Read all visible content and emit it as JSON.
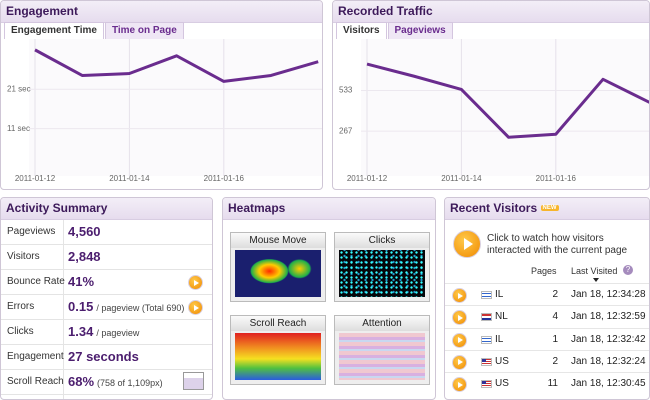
{
  "chart_data": [
    {
      "type": "line",
      "title": "Engagement",
      "tabs": [
        "Engagement Time",
        "Time on Page"
      ],
      "categories": [
        "2011-01-12",
        null,
        "2011-01-14",
        null,
        "2011-01-16",
        null,
        null
      ],
      "values": [
        31,
        24.5,
        25,
        29.5,
        23,
        24.5,
        28
      ],
      "color": "#6a2c8e",
      "ylim": [
        0,
        33
      ],
      "yticks": [
        {
          "value": 11,
          "label": "11 sec"
        },
        {
          "value": 21,
          "label": "21 sec"
        }
      ],
      "grid": true
    },
    {
      "type": "line",
      "title": "Recorded Traffic",
      "tabs": [
        "Visitors",
        "Pageviews"
      ],
      "categories": [
        "2011-01-12",
        null,
        "2011-01-14",
        null,
        "2011-01-16",
        null,
        null
      ],
      "values": [
        706,
        626,
        540,
        227,
        247,
        606,
        453
      ],
      "color": "#6a2c8e",
      "ylim": [
        0,
        850
      ],
      "yticks": [
        267,
        533
      ],
      "grid": true
    }
  ],
  "activity_summary": {
    "title": "Activity Summary",
    "rows": [
      {
        "label": "Pageviews",
        "value": "4,560"
      },
      {
        "label": "Visitors",
        "value": "2,848"
      },
      {
        "label": "Bounce Rate",
        "value": "41%"
      },
      {
        "label": "Errors",
        "value": "0.15",
        "detail": "/ pageview (Total 690)"
      },
      {
        "label": "Clicks",
        "value": "1.34",
        "detail": "/ pageview"
      },
      {
        "label": "Engagement",
        "value": "27 seconds"
      },
      {
        "label": "Scroll Reach",
        "value": "68%",
        "detail": "(758 of 1,109px)"
      }
    ]
  },
  "heatmaps": {
    "title": "Heatmaps",
    "items": [
      "Mouse Move",
      "Clicks",
      "Scroll Reach",
      "Attention"
    ]
  },
  "recent_visitors": {
    "title": "Recent Visitors",
    "badge": "NEW",
    "prompt": "Click to watch how visitors interacted with the current page",
    "columns": [
      "Pages",
      "Last Visited"
    ],
    "help": "?",
    "rows": [
      {
        "country": "IL",
        "pages": 2,
        "last_visited": "Jan 18, 12:34:28"
      },
      {
        "country": "NL",
        "pages": 4,
        "last_visited": "Jan 18, 12:32:59"
      },
      {
        "country": "IL",
        "pages": 1,
        "last_visited": "Jan 18, 12:32:42"
      },
      {
        "country": "US",
        "pages": 2,
        "last_visited": "Jan 18, 12:32:24"
      },
      {
        "country": "US",
        "pages": 11,
        "last_visited": "Jan 18, 12:30:45"
      }
    ]
  }
}
